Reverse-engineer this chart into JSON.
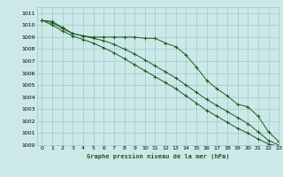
{
  "title": "Graphe pression niveau de la mer (hPa)",
  "background_color": "#cce8e8",
  "grid_color": "#99cccc",
  "line_color": "#1a5c1a",
  "xlim": [
    -0.5,
    23
  ],
  "ylim": [
    1000,
    1011.5
  ],
  "xticks": [
    0,
    1,
    2,
    3,
    4,
    5,
    6,
    7,
    8,
    9,
    10,
    11,
    12,
    13,
    14,
    15,
    16,
    17,
    18,
    19,
    20,
    21,
    22,
    23
  ],
  "yticks": [
    1000,
    1001,
    1002,
    1003,
    1004,
    1005,
    1006,
    1007,
    1008,
    1009,
    1010,
    1011
  ],
  "series": [
    {
      "x": [
        0,
        1,
        2,
        3,
        4,
        5,
        6,
        7,
        8,
        9,
        10,
        11,
        12,
        13,
        14,
        15,
        16,
        17,
        18,
        19,
        20,
        21,
        22,
        23
      ],
      "y": [
        1010.4,
        1010.3,
        1009.8,
        1009.3,
        1009.1,
        1009.0,
        1009.0,
        1009.0,
        1009.0,
        1009.0,
        1008.9,
        1008.9,
        1008.5,
        1008.2,
        1007.5,
        1006.5,
        1005.4,
        1004.7,
        1004.1,
        1003.4,
        1003.2,
        1002.4,
        1001.1,
        1000.3
      ]
    },
    {
      "x": [
        0,
        1,
        2,
        3,
        4,
        5,
        6,
        7,
        8,
        9,
        10,
        11,
        12,
        13,
        14,
        15,
        16,
        17,
        18,
        19,
        20,
        21,
        22,
        23
      ],
      "y": [
        1010.4,
        1010.2,
        1009.7,
        1009.3,
        1009.1,
        1008.9,
        1008.7,
        1008.4,
        1008.0,
        1007.6,
        1007.1,
        1006.6,
        1006.1,
        1005.6,
        1005.0,
        1004.4,
        1003.8,
        1003.3,
        1002.8,
        1002.3,
        1001.8,
        1001.1,
        1000.4,
        1000.0
      ]
    },
    {
      "x": [
        0,
        1,
        2,
        3,
        4,
        5,
        6,
        7,
        8,
        9,
        10,
        11,
        12,
        13,
        14,
        15,
        16,
        17,
        18,
        19,
        20,
        21,
        22,
        23
      ],
      "y": [
        1010.4,
        1010.0,
        1009.5,
        1009.1,
        1008.8,
        1008.5,
        1008.1,
        1007.7,
        1007.2,
        1006.7,
        1006.2,
        1005.7,
        1005.2,
        1004.7,
        1004.1,
        1003.5,
        1002.9,
        1002.4,
        1001.9,
        1001.4,
        1001.0,
        1000.5,
        1000.1,
        999.9
      ]
    }
  ]
}
